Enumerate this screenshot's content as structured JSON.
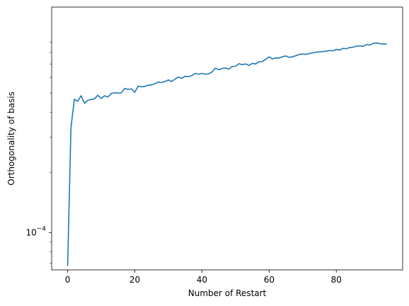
{
  "chart_data": {
    "type": "line",
    "xlabel": "Number of Restart",
    "ylabel": "Orthogonality of basis",
    "y_scale": "log",
    "xlim": [
      -4.75,
      99.75
    ],
    "ylim": [
      6.5e-05,
      0.00135
    ],
    "x_ticks": [
      0,
      20,
      40,
      60,
      80
    ],
    "x_tick_labels": [
      "0",
      "20",
      "40",
      "60",
      "80"
    ],
    "y_ticks_major": [
      0.0001
    ],
    "y_tick_major_labels": [
      "10",
      "−4"
    ],
    "grid": false,
    "series": [
      {
        "color": "#1f77b4",
        "x": [
          0,
          1,
          2,
          3,
          4,
          5,
          6,
          7,
          8,
          9,
          10,
          11,
          12,
          13,
          14,
          15,
          16,
          17,
          18,
          19,
          20,
          21,
          22,
          23,
          24,
          25,
          26,
          27,
          28,
          29,
          30,
          31,
          32,
          33,
          34,
          35,
          36,
          37,
          38,
          39,
          40,
          41,
          42,
          43,
          44,
          45,
          46,
          47,
          48,
          49,
          50,
          51,
          52,
          53,
          54,
          55,
          56,
          57,
          58,
          59,
          60,
          61,
          62,
          63,
          64,
          65,
          66,
          67,
          68,
          69,
          70,
          71,
          72,
          73,
          74,
          75,
          76,
          77,
          78,
          79,
          80,
          81,
          82,
          83,
          84,
          85,
          86,
          87,
          88,
          89,
          90,
          91,
          92,
          93,
          94,
          95
        ],
        "y": [
          6.8e-05,
          0.000335,
          0.000465,
          0.000455,
          0.000485,
          0.000445,
          0.00046,
          0.000465,
          0.000468,
          0.000488,
          0.00047,
          0.000485,
          0.000478,
          0.000498,
          0.000502,
          0.0005,
          0.000502,
          0.000528,
          0.000522,
          0.000525,
          0.000505,
          0.000542,
          0.000538,
          0.00054,
          0.000548,
          0.00055,
          0.000558,
          0.000568,
          0.000565,
          0.000572,
          0.000582,
          0.000572,
          0.000588,
          0.000602,
          0.000592,
          0.000608,
          0.000605,
          0.000612,
          0.000628,
          0.000622,
          0.000628,
          0.000622,
          0.000625,
          0.000638,
          0.000668,
          0.000655,
          0.000665,
          0.000668,
          0.00066,
          0.00068,
          0.000682,
          0.000702,
          0.000695,
          0.0007,
          0.000688,
          0.000705,
          0.0007,
          0.000718,
          0.00072,
          0.00074,
          0.00076,
          0.000742,
          0.000752,
          0.00075,
          0.000762,
          0.000768,
          0.000755,
          0.000762,
          0.00077,
          0.000782,
          0.000786,
          0.000782,
          0.00079,
          0.000796,
          0.000802,
          0.000806,
          0.000808,
          0.000812,
          0.000818,
          0.000815,
          0.000828,
          0.000822,
          0.000838,
          0.000835,
          0.000846,
          0.00085,
          0.00086,
          0.000862,
          0.000858,
          0.000876,
          0.00087,
          0.000888,
          0.000892,
          0.000885,
          0.000882,
          0.000882
        ]
      }
    ]
  }
}
